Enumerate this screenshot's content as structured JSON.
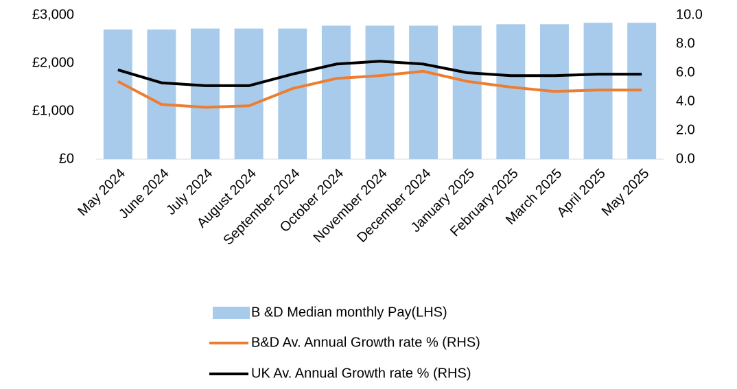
{
  "chart_data": {
    "type": "bar-line",
    "categories": [
      "May 2024",
      "June 2024",
      "July 2024",
      "August 2024",
      "September 2024",
      "October 2024",
      "November 2024",
      "December 2024",
      "January 2025",
      "February 2025",
      "March 2025",
      "April 2025",
      "May 2025"
    ],
    "series": [
      {
        "name": "B &D Median monthly Pay(LHS)",
        "type": "bar",
        "color": "#a9cbeb",
        "values": [
          2700,
          2700,
          2720,
          2720,
          2720,
          2780,
          2780,
          2780,
          2780,
          2810,
          2810,
          2840,
          2840
        ]
      },
      {
        "name": "B&D Av. Annual Growth rate % (RHS)",
        "type": "line",
        "axis": "y2",
        "color": "#ed7d31",
        "values": [
          5.4,
          3.8,
          3.6,
          3.7,
          4.9,
          5.6,
          5.8,
          6.1,
          5.4,
          5.0,
          4.7,
          4.8,
          4.8
        ]
      },
      {
        "name": "UK Av. Annual Growth rate % (RHS)",
        "type": "line",
        "axis": "y2",
        "color": "#000000",
        "values": [
          6.2,
          5.3,
          5.1,
          5.1,
          5.9,
          6.6,
          6.8,
          6.6,
          6.0,
          5.8,
          5.8,
          5.9,
          5.9
        ]
      }
    ],
    "ylim": [
      0,
      3000
    ],
    "yticks": [
      {
        "value": 0,
        "label": "£0"
      },
      {
        "value": 1000,
        "label": "£1,000"
      },
      {
        "value": 2000,
        "label": "£2,000"
      },
      {
        "value": 3000,
        "label": "£3,000"
      }
    ],
    "y2lim": [
      0,
      10
    ],
    "y2ticks": [
      {
        "value": 0,
        "label": "0.0"
      },
      {
        "value": 2,
        "label": "2.0"
      },
      {
        "value": 4,
        "label": "4.0"
      },
      {
        "value": 6,
        "label": "6.0"
      },
      {
        "value": 8,
        "label": "8.0"
      },
      {
        "value": 10,
        "label": "10.0"
      }
    ],
    "legend": "bottom"
  }
}
